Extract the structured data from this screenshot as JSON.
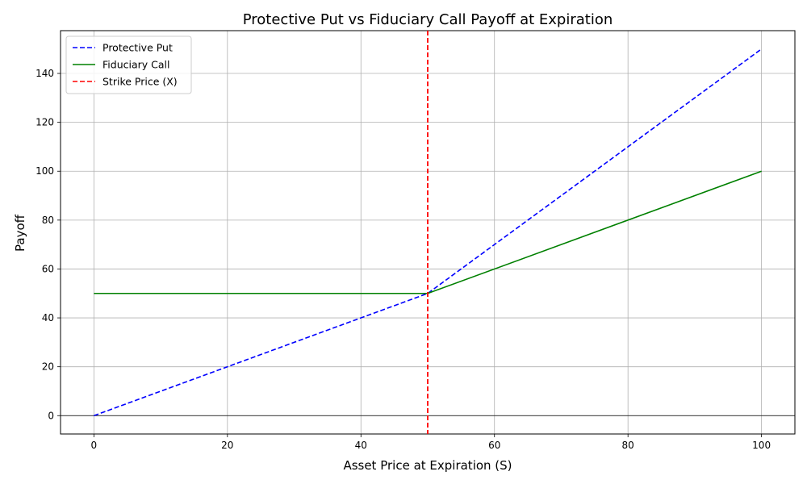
{
  "chart_data": {
    "type": "line",
    "title": "Protective Put vs Fiduciary Call Payoff at Expiration",
    "xlabel": "Asset Price at Expiration (S)",
    "ylabel": "Payoff",
    "xlim": [
      -5,
      105
    ],
    "ylim": [
      -7.5,
      157.5
    ],
    "xticks": [
      0,
      20,
      40,
      60,
      80,
      100
    ],
    "yticks": [
      0,
      20,
      40,
      60,
      80,
      100,
      120,
      140
    ],
    "grid": true,
    "legend_position": "upper-left",
    "series": [
      {
        "name": "Protective Put",
        "color": "#0000ff",
        "dash": "dashed",
        "x": [
          0,
          50,
          100
        ],
        "y": [
          0,
          50,
          150
        ]
      },
      {
        "name": "Fiduciary Call",
        "color": "#008000",
        "dash": "solid",
        "x": [
          0,
          50,
          100
        ],
        "y": [
          50,
          50,
          100
        ]
      }
    ],
    "reference_lines": [
      {
        "name": "Strike Price (X)",
        "orientation": "vertical",
        "x": 50,
        "color": "#ff0000",
        "dash": "dashed"
      },
      {
        "name": "",
        "orientation": "horizontal",
        "y": 0,
        "color": "#000000",
        "dash": "solid"
      }
    ],
    "legend": [
      "Protective Put",
      "Fiduciary Call",
      "Strike Price (X)"
    ]
  }
}
